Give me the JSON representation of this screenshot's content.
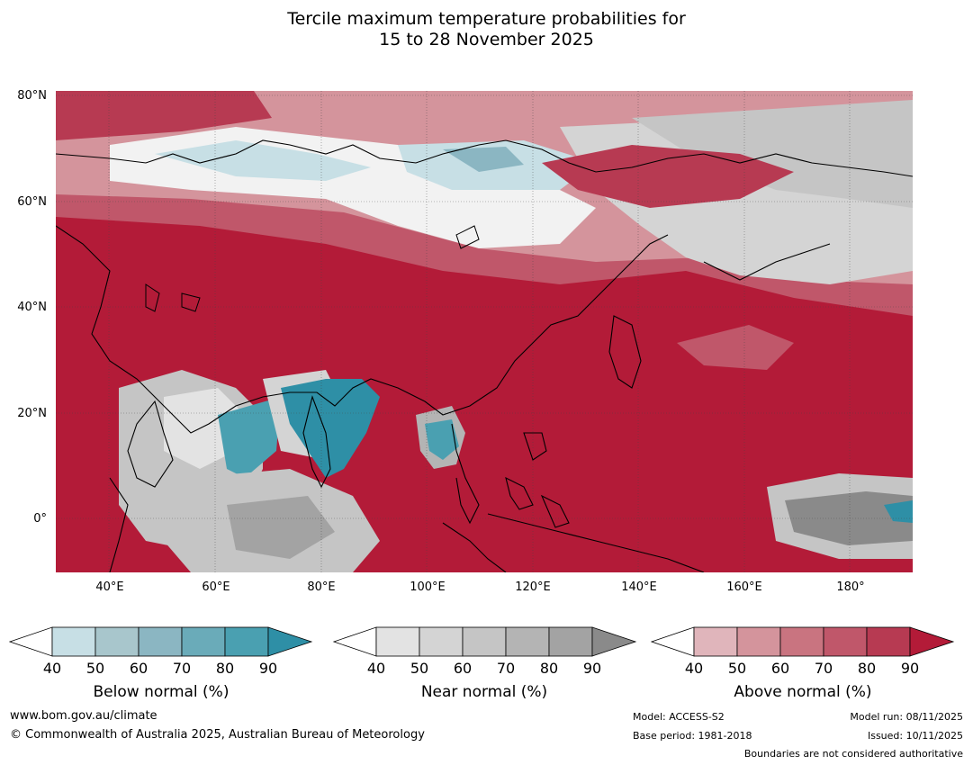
{
  "title": {
    "line1": "Tercile maximum temperature probabilities for",
    "line2": "15 to 28 November 2025"
  },
  "map": {
    "lat_labels": [
      "80°N",
      "60°N",
      "40°N",
      "20°N",
      "0°"
    ],
    "lon_labels": [
      "40°E",
      "60°E",
      "80°E",
      "100°E",
      "120°E",
      "140°E",
      "160°E",
      "180°"
    ],
    "colors": {
      "above_dominant": "#b31b38",
      "ocean_default": "#b31b38"
    }
  },
  "legends": {
    "below": {
      "label": "Below normal (%)",
      "ticks": [
        "40",
        "50",
        "60",
        "70",
        "80",
        "90"
      ],
      "colors": [
        "#ffffff",
        "#c7dfe5",
        "#a8c6cc",
        "#8bb6c2",
        "#6aabb9",
        "#4aa0b1",
        "#2e8fa6"
      ]
    },
    "near": {
      "label": "Near normal (%)",
      "ticks": [
        "40",
        "50",
        "60",
        "70",
        "80",
        "90"
      ],
      "colors": [
        "#ffffff",
        "#e3e3e3",
        "#d4d4d4",
        "#c5c5c5",
        "#b4b4b4",
        "#a3a3a3",
        "#8a8a8a"
      ]
    },
    "above": {
      "label": "Above normal (%)",
      "ticks": [
        "40",
        "50",
        "60",
        "70",
        "80",
        "90"
      ],
      "colors": [
        "#ffffff",
        "#e0b5bb",
        "#d4949c",
        "#c97480",
        "#c0576a",
        "#b73a52",
        "#b31b38"
      ]
    }
  },
  "footer": {
    "website": "www.bom.gov.au/climate",
    "copyright": "© Commonwealth of Australia 2025, Australian Bureau of Meteorology",
    "model": "Model: ACCESS-S2",
    "base_period": "Base period: 1981-2018",
    "model_run": "Model run: 08/11/2025",
    "issued": "Issued: 10/11/2025",
    "disclaimer": "Boundaries are not considered authoritative"
  }
}
